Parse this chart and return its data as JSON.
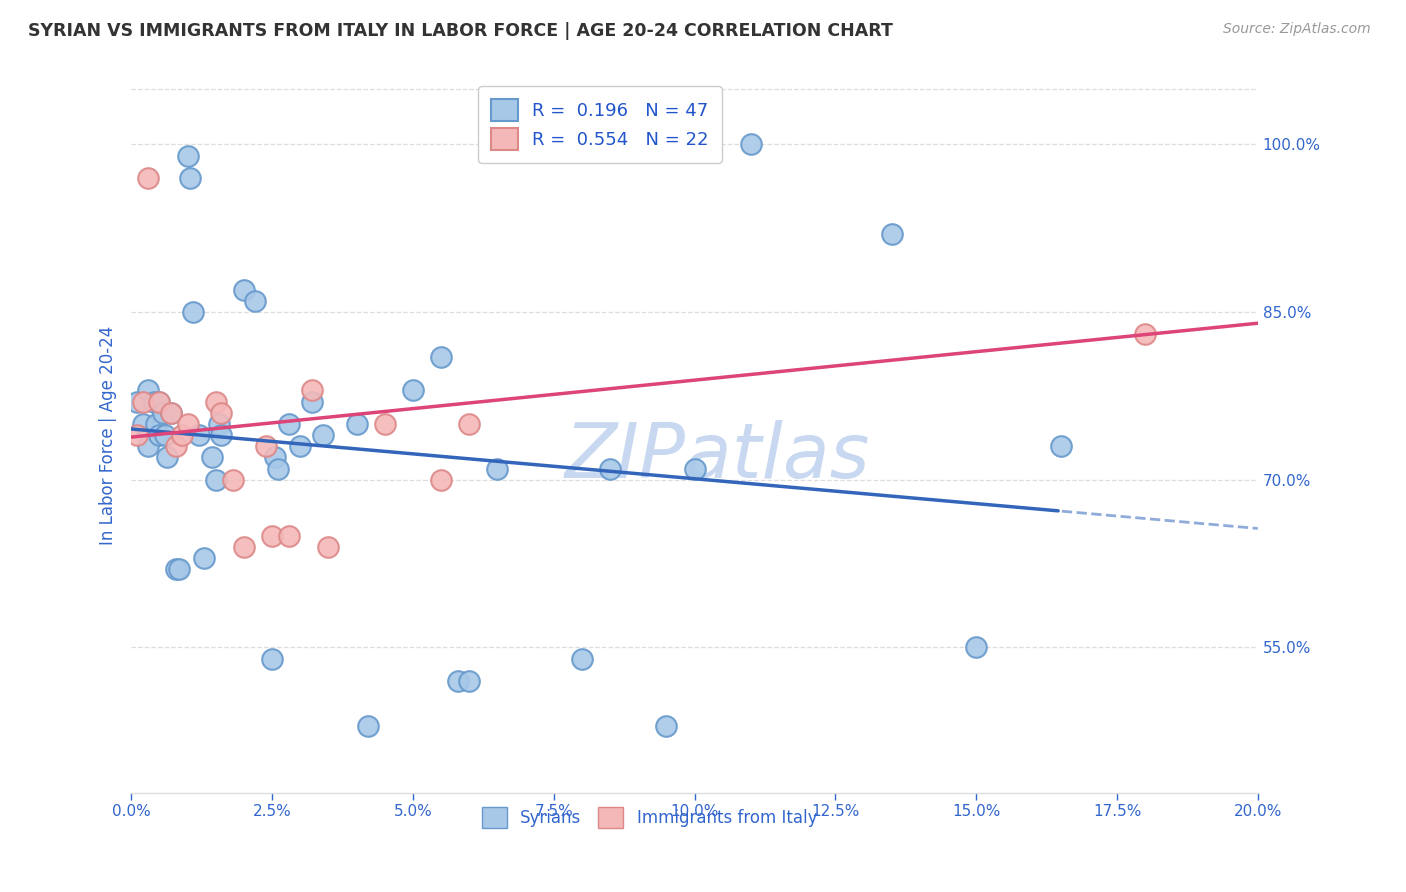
{
  "title": "SYRIAN VS IMMIGRANTS FROM ITALY IN LABOR FORCE | AGE 20-24 CORRELATION CHART",
  "source": "Source: ZipAtlas.com",
  "ylabel": "In Labor Force | Age 20-24",
  "syrians_R": 0.196,
  "syrians_N": 47,
  "italy_R": 0.554,
  "italy_N": 22,
  "blue_scatter_face": "#a8c8e8",
  "blue_scatter_edge": "#6699cc",
  "pink_scatter_face": "#f4b8b8",
  "pink_scatter_edge": "#dd8888",
  "blue_line_color": "#3366bb",
  "pink_line_color": "#dd4477",
  "legend_text_color": "#2255cc",
  "axis_tick_color": "#3366cc",
  "title_color": "#333333",
  "source_color": "#999999",
  "grid_color": "#dddddd",
  "watermark_color": "#c8d8f0",
  "background": "#ffffff",
  "syrians_x": [
    0.05,
    0.1,
    0.15,
    0.15,
    0.2,
    0.22,
    0.25,
    0.25,
    0.28,
    0.3,
    0.32,
    0.35,
    0.4,
    0.42,
    0.5,
    0.52,
    0.55,
    0.6,
    0.65,
    0.72,
    0.75,
    0.78,
    0.8,
    1.0,
    1.1,
    1.25,
    1.28,
    1.3,
    1.4,
    1.5,
    1.6,
    1.7,
    2.0,
    2.1,
    2.5,
    2.75,
    2.9,
    3.0,
    3.25,
    4.0,
    4.25,
    4.75,
    5.0,
    5.5,
    6.75,
    7.5,
    8.25
  ],
  "syrians_y": [
    0.77,
    0.75,
    0.78,
    0.73,
    0.77,
    0.75,
    0.77,
    0.74,
    0.76,
    0.74,
    0.72,
    0.76,
    0.62,
    0.62,
    0.99,
    0.97,
    0.85,
    0.74,
    0.63,
    0.72,
    0.7,
    0.75,
    0.74,
    0.87,
    0.86,
    0.54,
    0.72,
    0.71,
    0.75,
    0.73,
    0.77,
    0.74,
    0.75,
    0.48,
    0.78,
    0.81,
    0.52,
    0.52,
    0.71,
    0.54,
    0.71,
    0.48,
    0.71,
    1.0,
    0.92,
    0.55,
    0.73
  ],
  "italy_x": [
    0.05,
    0.1,
    0.15,
    0.25,
    0.35,
    0.4,
    0.45,
    0.5,
    0.75,
    0.8,
    0.9,
    1.0,
    1.2,
    1.25,
    1.4,
    1.6,
    1.75,
    2.25,
    2.75,
    3.0,
    3.5,
    9.0
  ],
  "italy_y": [
    0.74,
    0.77,
    0.97,
    0.77,
    0.76,
    0.73,
    0.74,
    0.75,
    0.77,
    0.76,
    0.7,
    0.64,
    0.73,
    0.65,
    0.65,
    0.78,
    0.64,
    0.75,
    0.7,
    0.75,
    1.0,
    0.83
  ],
  "xlim": [
    0.0,
    10.0
  ],
  "ylim": [
    0.42,
    1.06
  ],
  "xticks": [
    0.0,
    1.25,
    2.5,
    3.75,
    5.0,
    6.25,
    7.5,
    8.75,
    10.0
  ],
  "xtick_labels": [
    "0.0%",
    "2.5%",
    "5.0%",
    "7.5%",
    "10.0%",
    "12.5%",
    "15.0%",
    "17.5%",
    "20.0%"
  ],
  "yticks": [
    0.55,
    0.7,
    0.85,
    1.0
  ],
  "ytick_labels": [
    "55.0%",
    "70.0%",
    "85.0%",
    "100.0%"
  ]
}
